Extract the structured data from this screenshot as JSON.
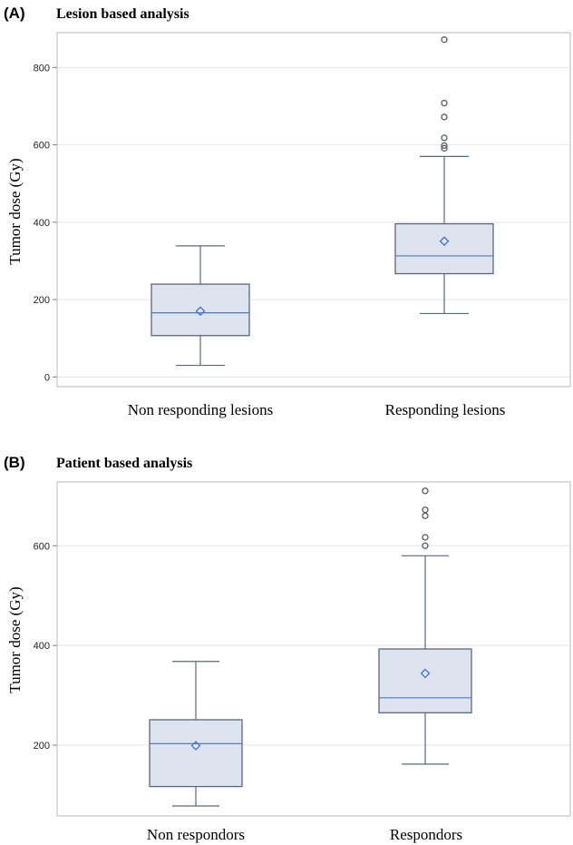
{
  "colors": {
    "box_fill": "#dde3ef",
    "box_stroke": "#5c6878",
    "median": "#5a78b8",
    "mean_marker": "#4a72c4",
    "outlier": "#555d66",
    "grid": "#e6e6e6",
    "frame": "#b8b8b8"
  },
  "chart_data": [
    {
      "type": "box",
      "panel": "(A)",
      "title": "Lesion based analysis",
      "ylabel": "Tumor dose (Gy)",
      "xlabel": "",
      "ylim": [
        -25,
        890
      ],
      "yticks": [
        0,
        200,
        400,
        600,
        800
      ],
      "grid": true,
      "categories": [
        "Non responding lesions",
        "Responding lesions"
      ],
      "boxes": [
        {
          "category": "Non responding lesions",
          "min": 30,
          "q1": 107,
          "median": 166,
          "q3": 240,
          "max": 339,
          "mean": 170,
          "outliers": []
        },
        {
          "category": "Responding lesions",
          "min": 164,
          "q1": 267,
          "median": 313,
          "q3": 396,
          "max": 570,
          "mean": 351,
          "outliers": [
            591,
            598,
            618,
            672,
            708,
            872
          ]
        }
      ]
    },
    {
      "type": "box",
      "panel": "(B)",
      "title": "Patient based analysis",
      "ylabel": "Tumor dose (Gy)",
      "xlabel": "",
      "ylim": [
        58,
        728
      ],
      "yticks": [
        200,
        400,
        600
      ],
      "grid": true,
      "categories": [
        "Non respondors",
        "Respondors"
      ],
      "boxes": [
        {
          "category": "Non respondors",
          "min": 78,
          "q1": 117,
          "median": 203,
          "q3": 251,
          "max": 368,
          "mean": 199,
          "outliers": []
        },
        {
          "category": "Respondors",
          "min": 162,
          "q1": 265,
          "median": 295,
          "q3": 393,
          "max": 580,
          "mean": 344,
          "outliers": [
            600,
            617,
            660,
            672,
            710
          ]
        }
      ]
    }
  ]
}
